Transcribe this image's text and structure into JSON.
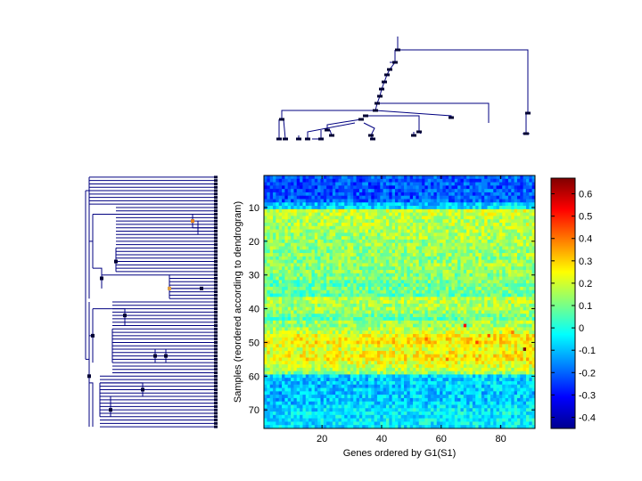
{
  "chart_data": {
    "type": "heatmap",
    "title": "",
    "xlabel": "Genes ordered by G1(S1)",
    "ylabel": "Samples (reordered according to dendrogram)",
    "n_cols": 91,
    "n_rows": 75,
    "xlim": [
      0.5,
      91.5
    ],
    "ylim": [
      0.5,
      75.5
    ],
    "x_ticks": [
      20,
      40,
      60,
      80
    ],
    "y_ticks": [
      10,
      20,
      30,
      40,
      50,
      60,
      70
    ],
    "colorbar": {
      "colormap": "jet",
      "range": [
        -0.45,
        0.67
      ],
      "ticks": [
        -0.4,
        -0.3,
        -0.2,
        -0.1,
        0,
        0.1,
        0.2,
        0.3,
        0.4,
        0.5,
        0.6
      ],
      "tick_labels": [
        "-0.4",
        "-0.3",
        "-0.2",
        "-0.1",
        "0",
        "0.1",
        "0.2",
        "0.3",
        "0.4",
        "0.5",
        "0.6"
      ]
    },
    "row_profile": [
      -0.22,
      -0.24,
      -0.23,
      -0.25,
      -0.22,
      -0.23,
      -0.24,
      -0.21,
      -0.1,
      -0.08,
      0.18,
      0.17,
      0.16,
      0.15,
      0.16,
      0.14,
      0.15,
      0.13,
      0.14,
      0.12,
      0.13,
      0.12,
      0.11,
      0.12,
      0.1,
      0.11,
      0.12,
      0.1,
      0.11,
      0.09,
      0.1,
      0.08,
      0.06,
      0.09,
      0.07,
      0.05,
      0.16,
      0.15,
      0.13,
      0.14,
      0.12,
      0.08,
      0.06,
      0.13,
      0.12,
      0.16,
      0.18,
      0.24,
      0.25,
      0.26,
      0.22,
      0.2,
      0.23,
      0.24,
      0.25,
      0.21,
      0.19,
      0.16,
      0.12,
      -0.08,
      -0.1,
      -0.09,
      -0.11,
      -0.1,
      -0.12,
      -0.09,
      -0.11,
      -0.1,
      -0.08,
      -0.07,
      -0.06,
      -0.07,
      -0.05,
      -0.06,
      -0.07
    ],
    "column_gradient": 0.03,
    "noise_amplitude": 0.09,
    "highlights": [
      {
        "col": 68,
        "row": 45,
        "value": 0.52
      },
      {
        "col": 72,
        "row": 50,
        "value": 0.46
      },
      {
        "col": 76,
        "row": 48,
        "value": 0.44
      },
      {
        "col": 84,
        "row": 47,
        "value": 0.4
      },
      {
        "col": 88,
        "row": 52,
        "value": 0.66
      },
      {
        "col": 55,
        "row": 49,
        "value": 0.42
      },
      {
        "col": 62,
        "row": 55,
        "value": 0.41
      }
    ],
    "col_dendrogram": {
      "orientation": "top",
      "description": "hierarchical clustering of genes"
    },
    "row_dendrogram": {
      "orientation": "left",
      "description": "hierarchical clustering of samples"
    }
  }
}
